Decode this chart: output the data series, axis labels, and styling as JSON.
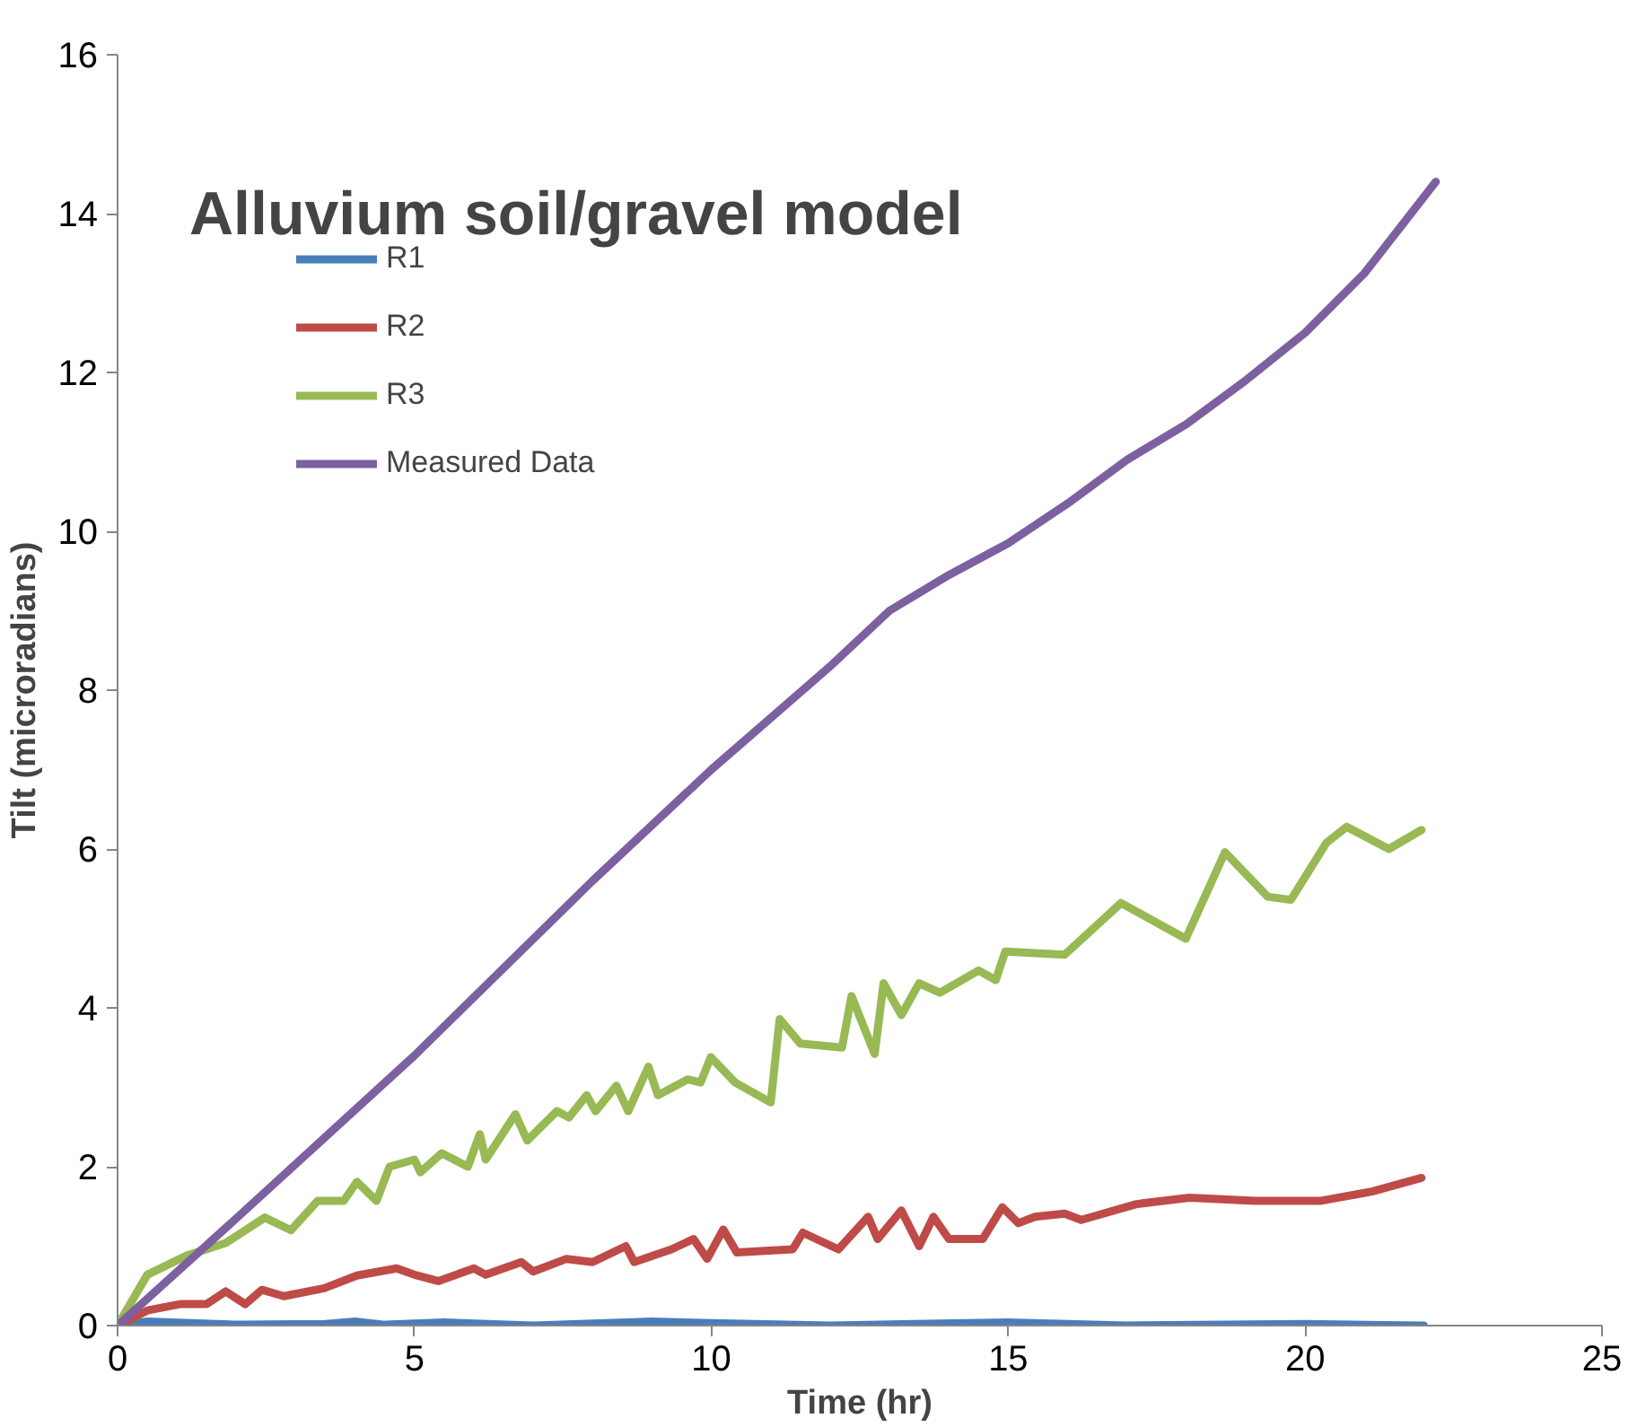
{
  "chart_data": {
    "type": "line",
    "title": "Alluvium soil/gravel model",
    "xlabel": "Time (hr)",
    "ylabel": "Tilt (microradians)",
    "xlim": [
      0,
      25
    ],
    "xticks": [
      0,
      5,
      10,
      15,
      20,
      25
    ],
    "ylim": [
      0,
      16
    ],
    "yticks": [
      0,
      2,
      4,
      6,
      8,
      10,
      12,
      14,
      16
    ],
    "grid": false,
    "legend": "top left",
    "marker": "none",
    "line_style": "solid",
    "series": [
      {
        "name": "R1",
        "color": "#4a7ebb",
        "x": [
          0,
          0.5,
          2,
          3.5,
          4,
          4.5,
          5.5,
          7,
          9,
          10,
          12,
          15,
          17,
          20,
          22
        ],
        "values": [
          0,
          0.05,
          0.01,
          0.02,
          0.05,
          0.01,
          0.04,
          0.0,
          0.05,
          0.03,
          0.0,
          0.04,
          0.0,
          0.02,
          0.0
        ]
      },
      {
        "name": "R2",
        "color": "#be4b48",
        "x": [
          0,
          0.5,
          1.05,
          1.5,
          1.82,
          2.15,
          2.43,
          2.8,
          3.48,
          4.03,
          4.7,
          5.0,
          5.4,
          6.0,
          6.2,
          6.8,
          7.0,
          7.56,
          8.0,
          8.56,
          8.7,
          9.33,
          9.7,
          9.93,
          10.2,
          10.43,
          11.37,
          11.54,
          12.14,
          12.64,
          12.8,
          13.2,
          13.5,
          13.74,
          14.0,
          14.57,
          14.9,
          15.17,
          15.45,
          15.95,
          16.23,
          17.16,
          18.05,
          19.15,
          20.25,
          21.14,
          21.96
        ],
        "values": [
          0,
          0.19,
          0.27,
          0.27,
          0.43,
          0.27,
          0.45,
          0.37,
          0.47,
          0.63,
          0.72,
          0.64,
          0.56,
          0.72,
          0.64,
          0.8,
          0.68,
          0.84,
          0.8,
          1.0,
          0.8,
          0.96,
          1.09,
          0.84,
          1.21,
          0.92,
          0.96,
          1.17,
          0.96,
          1.37,
          1.09,
          1.45,
          1.0,
          1.37,
          1.09,
          1.09,
          1.49,
          1.29,
          1.37,
          1.41,
          1.33,
          1.53,
          1.61,
          1.57,
          1.57,
          1.69,
          1.86
        ]
      },
      {
        "name": "R3",
        "color": "#98b954",
        "x": [
          0,
          0.5,
          1.16,
          1.82,
          2.48,
          2.92,
          3.37,
          3.81,
          4.03,
          4.36,
          4.58,
          5.0,
          5.1,
          5.46,
          5.9,
          6.1,
          6.2,
          6.7,
          6.9,
          7.4,
          7.6,
          7.9,
          8.05,
          8.4,
          8.6,
          8.94,
          9.1,
          9.6,
          9.82,
          9.99,
          10.4,
          11.0,
          11.15,
          11.5,
          12.2,
          12.36,
          12.75,
          12.9,
          13.2,
          13.5,
          13.85,
          14.5,
          14.79,
          14.95,
          15.95,
          16.9,
          17.99,
          18.65,
          19.37,
          19.76,
          20.36,
          20.7,
          21.41,
          21.96
        ],
        "values": [
          0,
          0.64,
          0.88,
          1.04,
          1.36,
          1.2,
          1.57,
          1.57,
          1.81,
          1.57,
          2.0,
          2.09,
          1.93,
          2.17,
          2.0,
          2.41,
          2.09,
          2.66,
          2.33,
          2.7,
          2.62,
          2.9,
          2.7,
          3.02,
          2.7,
          3.26,
          2.9,
          3.1,
          3.06,
          3.38,
          3.06,
          2.81,
          3.86,
          3.55,
          3.5,
          4.15,
          3.42,
          4.31,
          3.91,
          4.31,
          4.19,
          4.47,
          4.35,
          4.71,
          4.67,
          5.32,
          4.87,
          5.96,
          5.4,
          5.36,
          6.08,
          6.28,
          6.0,
          6.24
        ]
      },
      {
        "name": "Measured Data",
        "color": "#7d60a0",
        "x": [
          0,
          2,
          5,
          8,
          10,
          12,
          13,
          14,
          15,
          16,
          17,
          18,
          19,
          20,
          21,
          22.2
        ],
        "values": [
          0,
          1.35,
          3.4,
          5.6,
          7.0,
          8.3,
          9.0,
          9.45,
          9.85,
          10.35,
          10.9,
          11.35,
          11.9,
          12.5,
          13.25,
          14.4
        ]
      }
    ]
  }
}
